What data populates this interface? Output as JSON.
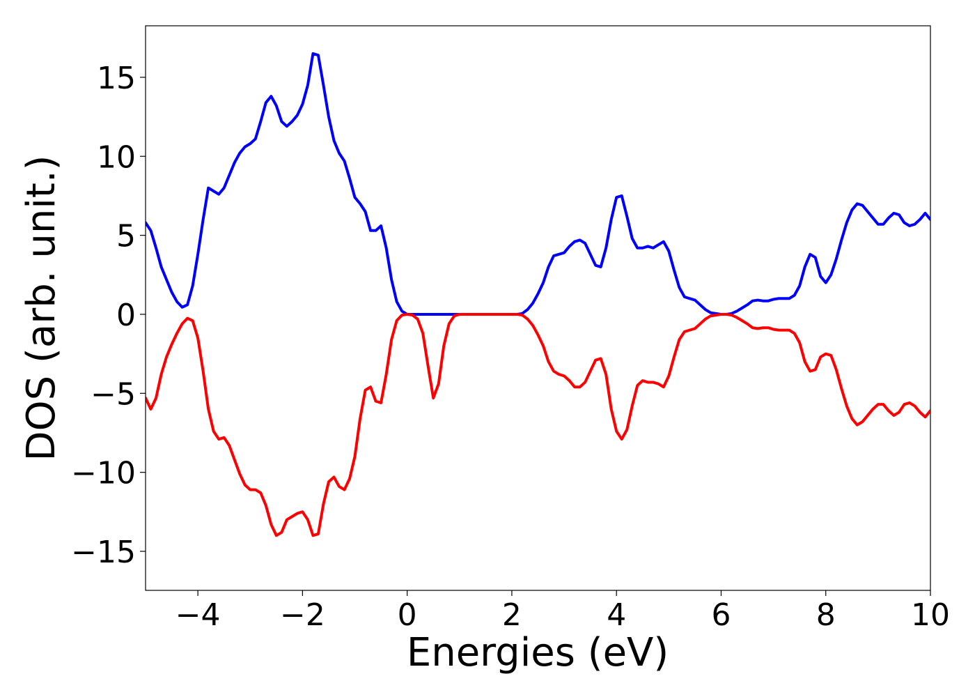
{
  "chart_data": {
    "type": "line",
    "xlabel": "Energies (eV)",
    "ylabel": "DOS (arb. unit.)",
    "xlim": [
      -5,
      10
    ],
    "ylim": [
      -17.47,
      18.26
    ],
    "xticks": [
      {
        "value": -4,
        "label": "−4"
      },
      {
        "value": -2,
        "label": "−2"
      },
      0,
      2,
      4,
      6,
      8,
      10
    ],
    "yticks": [
      {
        "value": -15,
        "label": "−15"
      },
      {
        "value": -10,
        "label": "−10"
      },
      {
        "value": -5,
        "label": "−5"
      },
      0,
      5,
      10,
      15
    ],
    "x": [
      -5,
      -4.9,
      -4.8,
      -4.7,
      -4.6,
      -4.5,
      -4.4,
      -4.3,
      -4.2,
      -4.1,
      -4,
      -3.9,
      -3.8,
      -3.7,
      -3.6,
      -3.5,
      -3.4,
      -3.3,
      -3.2,
      -3.1,
      -3,
      -2.9,
      -2.8,
      -2.7,
      -2.6,
      -2.5,
      -2.4,
      -2.3,
      -2.2,
      -2.1,
      -2,
      -1.9,
      -1.8,
      -1.7,
      -1.6,
      -1.5,
      -1.4,
      -1.3,
      -1.2,
      -1.1,
      -1,
      -0.9,
      -0.8,
      -0.7,
      -0.6,
      -0.5,
      -0.4,
      -0.3,
      -0.2,
      -0.1,
      0,
      0.1,
      0.2,
      0.3,
      0.4,
      0.5,
      0.6,
      0.7,
      0.8,
      0.9,
      1,
      1.1,
      1.2,
      1.3,
      1.4,
      1.5,
      1.6,
      1.7,
      1.8,
      1.9,
      2,
      2.1,
      2.2,
      2.3,
      2.4,
      2.5,
      2.6,
      2.7,
      2.8,
      2.9,
      3,
      3.1,
      3.2,
      3.3,
      3.4,
      3.5,
      3.6,
      3.7,
      3.8,
      3.9,
      4,
      4.1,
      4.2,
      4.3,
      4.4,
      4.5,
      4.6,
      4.7,
      4.8,
      4.9,
      5,
      5.1,
      5.2,
      5.3,
      5.4,
      5.5,
      5.6,
      5.7,
      5.8,
      5.9,
      6,
      6.1,
      6.2,
      6.3,
      6.4,
      6.5,
      6.6,
      6.7,
      6.8,
      6.9,
      7,
      7.1,
      7.2,
      7.3,
      7.4,
      7.5,
      7.6,
      7.7,
      7.8,
      7.9,
      8,
      8.1,
      8.2,
      8.3,
      8.4,
      8.5,
      8.6,
      8.7,
      8.8,
      8.9,
      9,
      9.1,
      9.2,
      9.3,
      9.4,
      9.5,
      9.6,
      9.7,
      9.8,
      9.9,
      10
    ],
    "series": [
      {
        "color": "#0000ff",
        "values": [
          5.8,
          5.3,
          4.2,
          3.0,
          2.2,
          1.4,
          0.8,
          0.45,
          0.6,
          1.8,
          3.8,
          6.0,
          8.0,
          7.8,
          7.6,
          8.0,
          8.8,
          9.6,
          10.2,
          10.6,
          10.8,
          11.1,
          12.2,
          13.4,
          13.8,
          13.2,
          12.2,
          11.9,
          12.2,
          12.6,
          13.3,
          14.5,
          16.5,
          16.4,
          14.5,
          12.5,
          11.0,
          10.2,
          9.7,
          8.6,
          7.4,
          7.0,
          6.5,
          5.3,
          5.3,
          5.6,
          4.2,
          2.2,
          0.8,
          0.2,
          0,
          0,
          0,
          0,
          0,
          0,
          0,
          0,
          0,
          0,
          0,
          0,
          0,
          0,
          0,
          0,
          0,
          0,
          0,
          0,
          0,
          0,
          0.05,
          0.3,
          0.7,
          1.3,
          2.0,
          3.0,
          3.7,
          3.8,
          3.9,
          4.3,
          4.6,
          4.7,
          4.5,
          3.8,
          3.1,
          3.0,
          4.2,
          6.0,
          7.4,
          7.5,
          6.2,
          4.8,
          4.2,
          4.2,
          4.3,
          4.2,
          4.4,
          4.6,
          4.0,
          2.8,
          1.7,
          1.1,
          1.0,
          0.9,
          0.6,
          0.3,
          0.1,
          0.05,
          0,
          0,
          0.05,
          0.2,
          0.4,
          0.6,
          0.85,
          0.9,
          0.85,
          0.85,
          0.95,
          1.0,
          1.0,
          1.0,
          1.2,
          1.8,
          3.0,
          3.8,
          3.6,
          2.4,
          2.0,
          2.5,
          3.5,
          4.7,
          5.8,
          6.6,
          7.0,
          6.9,
          6.5,
          6.1,
          5.7,
          5.7,
          6.1,
          6.4,
          6.3,
          5.8,
          5.6,
          5.7,
          6.0,
          6.4,
          6.0
        ]
      },
      {
        "color": "#ff0000",
        "values": [
          -5.3,
          -6.0,
          -5.3,
          -3.8,
          -2.7,
          -1.9,
          -1.2,
          -0.6,
          -0.25,
          -0.4,
          -1.5,
          -3.6,
          -6.0,
          -7.4,
          -7.9,
          -7.8,
          -8.3,
          -9.2,
          -10.1,
          -10.8,
          -11.1,
          -11.1,
          -11.3,
          -12.1,
          -13.3,
          -14.0,
          -13.8,
          -13.0,
          -12.8,
          -12.6,
          -12.5,
          -13.0,
          -14.0,
          -13.9,
          -12.0,
          -10.6,
          -10.3,
          -10.9,
          -11.1,
          -10.4,
          -9.0,
          -6.6,
          -4.8,
          -4.6,
          -5.5,
          -5.6,
          -3.8,
          -1.6,
          -0.4,
          -0.05,
          0,
          -0.05,
          -0.3,
          -1.2,
          -3.3,
          -5.3,
          -4.4,
          -2.0,
          -0.6,
          -0.1,
          0,
          0,
          0,
          0,
          0,
          0,
          0,
          0,
          0,
          0,
          0,
          0,
          -0.05,
          -0.3,
          -0.7,
          -1.3,
          -2.0,
          -3.0,
          -3.6,
          -3.8,
          -3.9,
          -4.2,
          -4.6,
          -4.6,
          -4.3,
          -3.6,
          -2.9,
          -2.8,
          -3.8,
          -6.0,
          -7.4,
          -7.9,
          -7.3,
          -5.8,
          -4.5,
          -4.2,
          -4.3,
          -4.3,
          -4.4,
          -4.6,
          -3.9,
          -2.7,
          -1.6,
          -1.1,
          -1.0,
          -0.9,
          -0.6,
          -0.3,
          -0.1,
          -0.05,
          0,
          0,
          -0.05,
          -0.2,
          -0.4,
          -0.6,
          -0.85,
          -0.9,
          -0.85,
          -0.85,
          -0.95,
          -1.0,
          -1.0,
          -1.0,
          -1.2,
          -1.8,
          -3.0,
          -3.6,
          -3.5,
          -2.7,
          -2.5,
          -2.6,
          -3.5,
          -4.7,
          -5.8,
          -6.6,
          -7.0,
          -6.8,
          -6.4,
          -6.0,
          -5.7,
          -5.7,
          -6.1,
          -6.4,
          -6.2,
          -5.7,
          -5.6,
          -5.8,
          -6.2,
          -6.5,
          -6.1
        ]
      }
    ]
  }
}
